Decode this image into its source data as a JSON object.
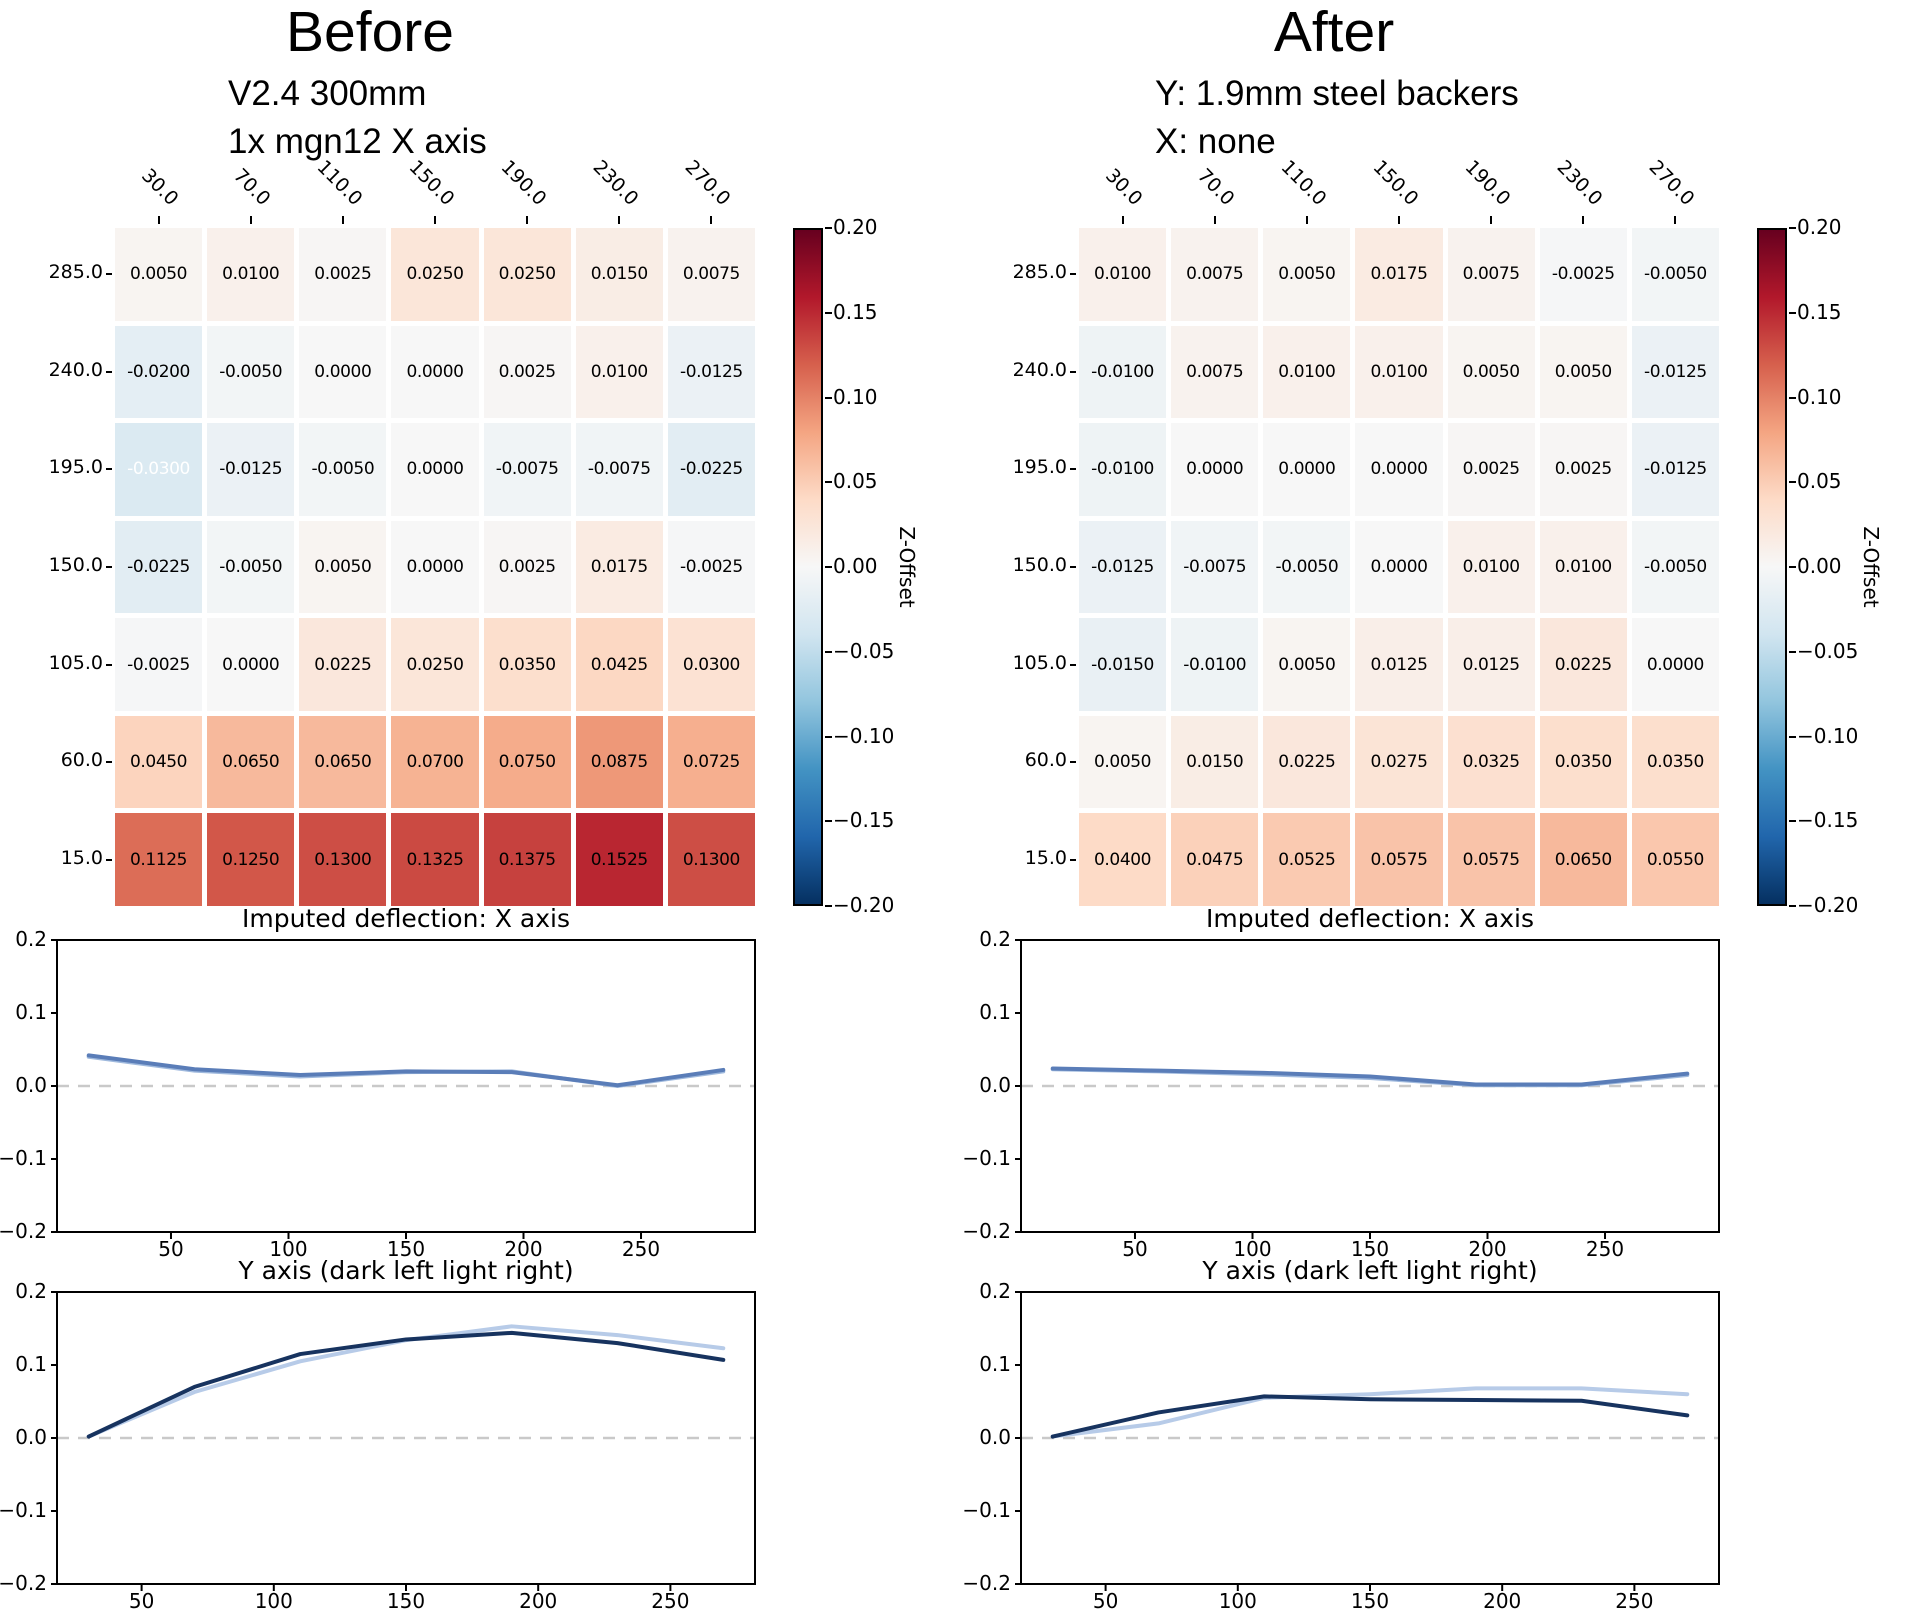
{
  "panels": {
    "before": {
      "title": "Before",
      "subtitle_lines": [
        "V2.4 300mm",
        "1x mgn12 X axis"
      ]
    },
    "after": {
      "title": "After",
      "subtitle_lines": [
        "Y: 1.9mm steel backers",
        "X: none"
      ]
    }
  },
  "colorbar": {
    "label": "Z-Offset",
    "vmin": -0.2,
    "vmax": 0.2,
    "tick_values": [
      0.2,
      0.15,
      0.1,
      0.05,
      0.0,
      -0.05,
      -0.1,
      -0.15,
      -0.2
    ],
    "colormap": "RdBu_r"
  },
  "colors": {
    "background": "#ffffff",
    "annotation_text": "#000000",
    "annotation_text_alt": "#ffffff",
    "zero_line": "#c9c9c9",
    "spine": "#000000"
  },
  "chart_data": [
    {
      "id": "before_heatmap",
      "type": "heatmap",
      "panel": "Before",
      "x": [
        30.0,
        70.0,
        110.0,
        150.0,
        190.0,
        230.0,
        270.0
      ],
      "y": [
        285.0,
        240.0,
        195.0,
        150.0,
        105.0,
        60.0,
        15.0
      ],
      "values": [
        [
          0.005,
          0.01,
          0.0025,
          0.025,
          0.025,
          0.015,
          0.0075
        ],
        [
          -0.02,
          -0.005,
          0.0,
          0.0,
          0.0025,
          0.01,
          -0.0125
        ],
        [
          -0.03,
          -0.0125,
          -0.005,
          0.0,
          -0.0075,
          -0.0075,
          -0.0225
        ],
        [
          -0.0225,
          -0.005,
          0.005,
          0.0,
          0.0025,
          0.0175,
          -0.0025
        ],
        [
          -0.0025,
          0.0,
          0.0225,
          0.025,
          0.035,
          0.0425,
          0.03
        ],
        [
          0.045,
          0.065,
          0.065,
          0.07,
          0.075,
          0.0875,
          0.0725
        ],
        [
          0.1125,
          0.125,
          0.13,
          0.1325,
          0.1375,
          0.1525,
          0.13
        ]
      ],
      "white_text_cells": [
        [
          2,
          0
        ]
      ],
      "colorbar_label": "Z-Offset",
      "vmin": -0.2,
      "vmax": 0.2
    },
    {
      "id": "before_x_deflection",
      "type": "line",
      "title": "Imputed deflection: X axis",
      "x": [
        15,
        60,
        105,
        150,
        195,
        240,
        285
      ],
      "series": [
        {
          "name": "light",
          "color": "#9fb9dd",
          "values": [
            0.04,
            0.021,
            0.013,
            0.019,
            0.02,
            0.0,
            0.02
          ]
        },
        {
          "name": "dark",
          "color": "#5a7db8",
          "values": [
            0.042,
            0.023,
            0.015,
            0.02,
            0.019,
            0.001,
            0.022
          ]
        }
      ],
      "xlim": [
        1.5,
        298.5
      ],
      "ylim": [
        -0.2,
        0.2
      ],
      "x_ticks": [
        50,
        100,
        150,
        200,
        250
      ],
      "y_ticks": [
        0.2,
        0.1,
        0.0,
        -0.1,
        -0.2
      ],
      "zero_line": true
    },
    {
      "id": "before_y_deflection",
      "type": "line",
      "title": "Y axis (dark left light right)",
      "x": [
        30,
        70,
        110,
        150,
        190,
        230,
        270
      ],
      "series": [
        {
          "name": "light",
          "color": "#b7cbe8",
          "values": [
            0.002,
            0.063,
            0.105,
            0.134,
            0.153,
            0.141,
            0.123
          ]
        },
        {
          "name": "dark",
          "color": "#17335f",
          "values": [
            0.002,
            0.07,
            0.115,
            0.135,
            0.144,
            0.13,
            0.107
          ]
        }
      ],
      "xlim": [
        18,
        282
      ],
      "ylim": [
        -0.2,
        0.2
      ],
      "x_ticks": [
        50,
        100,
        150,
        200,
        250
      ],
      "y_ticks": [
        0.2,
        0.1,
        0.0,
        -0.1,
        -0.2
      ],
      "zero_line": true
    },
    {
      "id": "after_heatmap",
      "type": "heatmap",
      "panel": "After",
      "x": [
        30.0,
        70.0,
        110.0,
        150.0,
        190.0,
        230.0,
        270.0
      ],
      "y": [
        285.0,
        240.0,
        195.0,
        150.0,
        105.0,
        60.0,
        15.0
      ],
      "values": [
        [
          0.01,
          0.0075,
          0.005,
          0.0175,
          0.0075,
          -0.0025,
          -0.005
        ],
        [
          -0.01,
          0.0075,
          0.01,
          0.01,
          0.005,
          0.005,
          -0.0125
        ],
        [
          -0.01,
          0.0,
          0.0,
          0.0,
          0.0025,
          0.0025,
          -0.0125
        ],
        [
          -0.0125,
          -0.0075,
          -0.005,
          0.0,
          0.01,
          0.01,
          -0.005
        ],
        [
          -0.015,
          -0.01,
          0.005,
          0.0125,
          0.0125,
          0.0225,
          0.0
        ],
        [
          0.005,
          0.015,
          0.0225,
          0.0275,
          0.0325,
          0.035,
          0.035
        ],
        [
          0.04,
          0.0475,
          0.0525,
          0.0575,
          0.0575,
          0.065,
          0.055
        ]
      ],
      "white_text_cells": [],
      "colorbar_label": "Z-Offset",
      "vmin": -0.2,
      "vmax": 0.2
    },
    {
      "id": "after_x_deflection",
      "type": "line",
      "title": "Imputed deflection: X axis",
      "x": [
        15,
        60,
        105,
        150,
        195,
        240,
        285
      ],
      "series": [
        {
          "name": "light",
          "color": "#9fb9dd",
          "values": [
            0.023,
            0.02,
            0.016,
            0.011,
            0.001,
            0.001,
            0.015
          ]
        },
        {
          "name": "dark",
          "color": "#5a7db8",
          "values": [
            0.024,
            0.021,
            0.018,
            0.013,
            0.002,
            0.002,
            0.017
          ]
        }
      ],
      "xlim": [
        1.5,
        298.5
      ],
      "ylim": [
        -0.2,
        0.2
      ],
      "x_ticks": [
        50,
        100,
        150,
        200,
        250
      ],
      "y_ticks": [
        0.2,
        0.1,
        0.0,
        -0.1,
        -0.2
      ],
      "zero_line": true
    },
    {
      "id": "after_y_deflection",
      "type": "line",
      "title": "Y axis (dark left light right)",
      "x": [
        30,
        70,
        110,
        150,
        190,
        230,
        270
      ],
      "series": [
        {
          "name": "light",
          "color": "#b7cbe8",
          "values": [
            0.002,
            0.02,
            0.055,
            0.06,
            0.068,
            0.068,
            0.06
          ]
        },
        {
          "name": "dark",
          "color": "#17335f",
          "values": [
            0.002,
            0.035,
            0.057,
            0.053,
            0.052,
            0.051,
            0.031
          ]
        }
      ],
      "xlim": [
        18,
        282
      ],
      "ylim": [
        -0.2,
        0.2
      ],
      "x_ticks": [
        50,
        100,
        150,
        200,
        250
      ],
      "y_ticks": [
        0.2,
        0.1,
        0.0,
        -0.1,
        -0.2
      ],
      "zero_line": true
    }
  ]
}
